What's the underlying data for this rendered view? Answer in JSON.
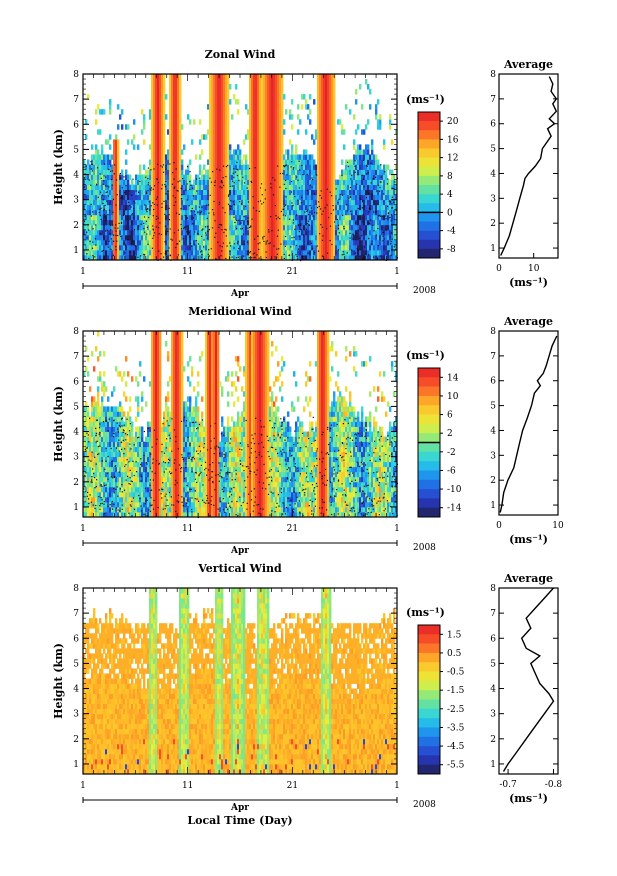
{
  "chart_data": [
    {
      "type": "heatmap",
      "title": "Zonal Wind",
      "ylabel": "Height (km)",
      "xlabel": "",
      "x_ticks": [
        "1",
        "11",
        "21",
        "1"
      ],
      "month_label": "Apr",
      "year_label": "2008",
      "x_range": [
        1,
        31
      ],
      "ylim": [
        0.6,
        8
      ],
      "y_ticks": [
        "1",
        "2",
        "3",
        "4",
        "5",
        "6",
        "7",
        "8"
      ],
      "colorbar": {
        "unit": "(ms⁻¹)",
        "ticks": [
          "20",
          "16",
          "12",
          "8",
          "4",
          "0",
          "-4",
          "-8"
        ],
        "range": [
          -10,
          22
        ],
        "zero_line": 0
      },
      "profile": {
        "title": "Average",
        "xlabel": "(ms⁻¹)",
        "x_ticks": [
          "0",
          "10"
        ],
        "xlim": [
          0,
          17
        ],
        "heights": [
          0.7,
          1.0,
          1.5,
          2.0,
          2.5,
          3.0,
          3.5,
          3.8,
          4.0,
          4.3,
          4.6,
          5.0,
          5.2,
          5.5,
          5.8,
          6.0,
          6.2,
          6.5,
          6.8,
          7.0,
          7.3,
          7.6,
          7.9
        ],
        "values": [
          0.5,
          1.5,
          3.0,
          4.0,
          5.0,
          6.0,
          7.0,
          7.5,
          8.5,
          10.5,
          12.0,
          12.5,
          13.5,
          15.0,
          14.0,
          16.0,
          14.5,
          16.5,
          15.5,
          16.5,
          15.0,
          15.5,
          14.5
        ]
      }
    },
    {
      "type": "heatmap",
      "title": "Meridional Wind",
      "ylabel": "Height (km)",
      "xlabel": "",
      "x_ticks": [
        "1",
        "11",
        "21",
        "1"
      ],
      "month_label": "Apr",
      "year_label": "2008",
      "x_range": [
        1,
        31
      ],
      "ylim": [
        0.6,
        8
      ],
      "y_ticks": [
        "1",
        "2",
        "3",
        "4",
        "5",
        "6",
        "7",
        "8"
      ],
      "colorbar": {
        "unit": "(ms⁻¹)",
        "ticks": [
          "14",
          "10",
          "6",
          "2",
          "-2",
          "-6",
          "-10",
          "-14"
        ],
        "range": [
          -16,
          16
        ],
        "zero_line": 0
      },
      "profile": {
        "title": "Average",
        "xlabel": "(ms⁻¹)",
        "x_ticks": [
          "0",
          "10"
        ],
        "xlim": [
          0,
          10
        ],
        "heights": [
          0.7,
          1.0,
          1.5,
          2.0,
          2.5,
          3.0,
          3.5,
          4.0,
          4.5,
          5.0,
          5.5,
          5.8,
          6.0,
          6.3,
          6.6,
          7.0,
          7.4,
          7.8
        ],
        "values": [
          0.2,
          0.5,
          0.8,
          1.5,
          2.5,
          3.0,
          3.5,
          4.0,
          4.8,
          5.5,
          6.0,
          7.0,
          6.5,
          7.5,
          8.0,
          8.5,
          9.0,
          9.8
        ]
      }
    },
    {
      "type": "heatmap",
      "title": "Vertical Wind",
      "ylabel": "Height (km)",
      "xlabel": "Local Time (Day)",
      "x_ticks": [
        "1",
        "11",
        "21",
        "1"
      ],
      "month_label": "Apr",
      "year_label": "2008",
      "x_range": [
        1,
        31
      ],
      "ylim": [
        0.6,
        8
      ],
      "y_ticks": [
        "1",
        "2",
        "3",
        "4",
        "5",
        "6",
        "7",
        "8"
      ],
      "colorbar": {
        "unit": "(ms⁻¹)",
        "ticks": [
          "1.5",
          "0.5",
          "-0.5",
          "-1.5",
          "-2.5",
          "-3.5",
          "-4.5",
          "-5.5"
        ],
        "range": [
          -6,
          2
        ],
        "zero_line": null
      },
      "profile": {
        "title": "Average",
        "xlabel": "(ms⁻¹)",
        "x_ticks": [
          "-0.7",
          "-0.8"
        ],
        "xlim": [
          -0.68,
          -0.81
        ],
        "heights": [
          0.7,
          1.0,
          1.5,
          2.0,
          2.5,
          3.0,
          3.5,
          3.8,
          4.2,
          4.6,
          5.0,
          5.3,
          5.6,
          6.0,
          6.4,
          6.8,
          7.2,
          7.6,
          8.0
        ],
        "values": [
          -0.69,
          -0.7,
          -0.72,
          -0.74,
          -0.76,
          -0.78,
          -0.8,
          -0.79,
          -0.77,
          -0.76,
          -0.75,
          -0.77,
          -0.74,
          -0.73,
          -0.75,
          -0.74,
          -0.76,
          -0.78,
          -0.8
        ]
      }
    }
  ]
}
